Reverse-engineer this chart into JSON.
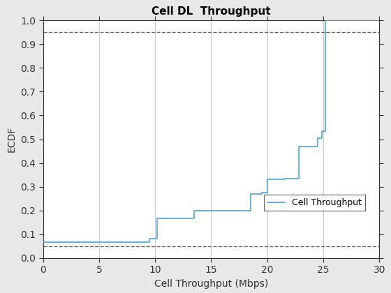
{
  "title": "Cell DL  Throughput",
  "xlabel": "Cell Throughput (Mbps)",
  "ylabel": "ECDF",
  "legend_label": "Cell Throughput",
  "xlim": [
    0,
    30
  ],
  "ylim": [
    0,
    1
  ],
  "xticks": [
    0,
    5,
    10,
    15,
    20,
    25,
    30
  ],
  "yticks": [
    0,
    0.1,
    0.2,
    0.3,
    0.4,
    0.5,
    0.6,
    0.7,
    0.8,
    0.9,
    1
  ],
  "hline_values": [
    0.05,
    0.95
  ],
  "vline_values": [
    5,
    10,
    15,
    20,
    25
  ],
  "line_color": "#4CA6D9",
  "hline_color": "#666666",
  "vline_color": "#C8C8DC",
  "background_color": "#E8E8E8",
  "axes_background": "#FFFFFF",
  "ecdf_x": [
    0.0,
    0.3,
    0.3,
    9.5,
    9.5,
    10.2,
    10.2,
    13.5,
    13.5,
    18.5,
    18.5,
    19.5,
    19.5,
    20.0,
    20.0,
    21.5,
    21.5,
    22.8,
    22.8,
    24.5,
    24.5,
    24.9,
    24.9,
    25.2,
    25.2,
    25.85,
    25.85,
    30.0
  ],
  "ecdf_y": [
    0.065,
    0.065,
    0.065,
    0.065,
    0.08,
    0.08,
    0.167,
    0.167,
    0.2,
    0.2,
    0.268,
    0.268,
    0.275,
    0.275,
    0.33,
    0.33,
    0.335,
    0.335,
    0.47,
    0.47,
    0.505,
    0.505,
    0.535,
    0.535,
    1.0,
    1.0,
    1.0,
    1.0
  ],
  "title_fontsize": 11,
  "label_fontsize": 10,
  "tick_fontsize": 10,
  "legend_fontsize": 9
}
